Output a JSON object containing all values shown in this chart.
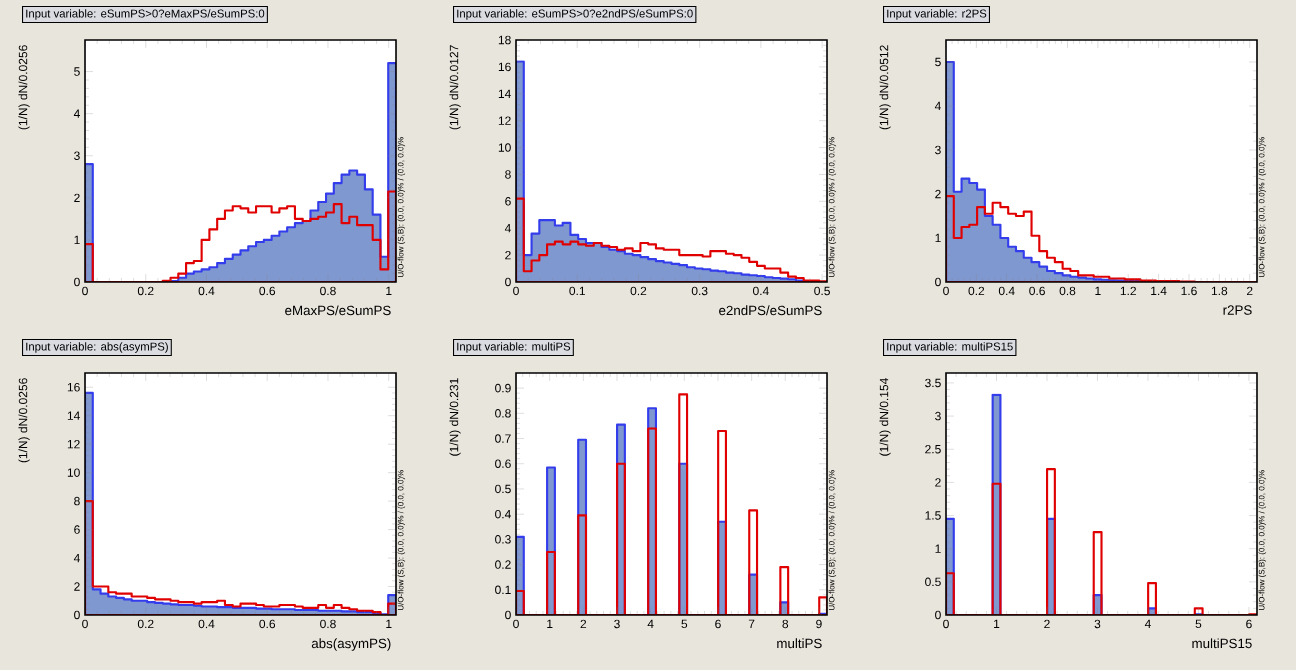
{
  "chart_data": [
    {
      "type": "histogram",
      "title": "Input variable: eSumPS>0?eMaxPS/eSumPS:0",
      "xlabel": "eMaxPS/eSumPS",
      "ylabel": "(1/N) dN/0.0256",
      "annotations": [
        "U/O-flow (S,B): (0.0, 0.0)% / (0.0, 0.0)%"
      ],
      "bins": [
        0,
        0.0256,
        0.0512,
        0.0768,
        0.1024,
        0.128,
        0.1536,
        0.1792,
        0.2048,
        0.2304,
        0.256,
        0.2816,
        0.3072,
        0.3328,
        0.3584,
        0.384,
        0.4096,
        0.4352,
        0.4608,
        0.4864,
        0.512,
        0.5376,
        0.5632,
        0.5888,
        0.6144,
        0.64,
        0.6656,
        0.6912,
        0.7168,
        0.7424,
        0.768,
        0.7936,
        0.8192,
        0.8448,
        0.8704,
        0.896,
        0.9216,
        0.9472,
        0.9728,
        0.9984,
        1.024
      ],
      "series": [
        {
          "color": "#8098d0",
          "values": [
            2.8,
            0,
            0,
            0,
            0,
            0,
            0,
            0,
            0,
            0,
            0,
            0.02,
            0.1,
            0.2,
            0.25,
            0.3,
            0.35,
            0.45,
            0.55,
            0.65,
            0.75,
            0.85,
            0.95,
            1.0,
            1.1,
            1.2,
            1.3,
            1.4,
            1.45,
            1.7,
            1.9,
            2.1,
            2.35,
            2.55,
            2.65,
            2.55,
            2.2,
            1.6,
            0.6,
            5.2
          ]
        },
        {
          "color": "#e00000",
          "values": [
            0.9,
            0,
            0,
            0,
            0,
            0,
            0,
            0,
            0,
            0,
            0.03,
            0.1,
            0.2,
            0.45,
            0.5,
            1.0,
            1.25,
            1.5,
            1.7,
            1.8,
            1.75,
            1.65,
            1.8,
            1.8,
            1.65,
            1.75,
            1.8,
            1.5,
            1.45,
            1.5,
            1.55,
            1.65,
            1.85,
            1.4,
            1.55,
            1.35,
            1.35,
            1.0,
            0.3,
            2.15
          ]
        }
      ],
      "xlim": [
        0,
        1.024
      ],
      "ylim": [
        0,
        5.75
      ],
      "xticks": [
        0,
        0.2,
        0.4,
        0.6,
        0.8,
        1
      ],
      "yticks": [
        0,
        1,
        2,
        3,
        4,
        5
      ]
    },
    {
      "type": "histogram",
      "title": "Input variable: eSumPS>0?e2ndPS/eSumPS:0",
      "xlabel": "e2ndPS/eSumPS",
      "ylabel": "(1/N) dN/0.0127",
      "annotations": [
        "U/O-flow (S,B): (0.0, 0.0)% / (0.0, 0.0)%"
      ],
      "bins": [
        0,
        0.0127,
        0.0254,
        0.0381,
        0.0508,
        0.0635,
        0.0762,
        0.0889,
        0.1016,
        0.1143,
        0.127,
        0.1397,
        0.1524,
        0.1651,
        0.1778,
        0.1905,
        0.2032,
        0.2159,
        0.2286,
        0.2413,
        0.254,
        0.2667,
        0.2794,
        0.2921,
        0.3048,
        0.3175,
        0.3302,
        0.3429,
        0.3556,
        0.3683,
        0.381,
        0.3937,
        0.4064,
        0.4191,
        0.4318,
        0.4445,
        0.4572,
        0.4699,
        0.4826,
        0.4953,
        0.508
      ],
      "series": [
        {
          "color": "#8098d0",
          "values": [
            16.4,
            2.0,
            3.6,
            4.6,
            4.6,
            4.2,
            4.4,
            3.5,
            3.2,
            2.9,
            2.9,
            2.6,
            2.4,
            2.3,
            2.1,
            2.0,
            1.85,
            1.7,
            1.55,
            1.45,
            1.35,
            1.25,
            1.1,
            1.0,
            0.95,
            0.85,
            0.8,
            0.7,
            0.65,
            0.55,
            0.5,
            0.45,
            0.35,
            0.3,
            0.25,
            0.2,
            0.1,
            0.05,
            0.02,
            0
          ]
        },
        {
          "color": "#e00000",
          "values": [
            6.2,
            0.8,
            1.6,
            2.0,
            2.8,
            3.0,
            2.8,
            3.0,
            2.8,
            2.7,
            2.9,
            2.7,
            2.6,
            2.4,
            2.5,
            2.3,
            2.9,
            2.8,
            2.5,
            2.4,
            2.4,
            2.0,
            2.0,
            2.0,
            1.9,
            2.3,
            2.3,
            2.1,
            2.0,
            1.8,
            1.5,
            1.2,
            1.0,
            1.0,
            0.7,
            0.4,
            0.3,
            0.1,
            0.1,
            0.05
          ]
        }
      ],
      "xlim": [
        0,
        0.508
      ],
      "ylim": [
        0,
        18
      ],
      "xticks": [
        0,
        0.1,
        0.2,
        0.3,
        0.4,
        0.5
      ],
      "yticks": [
        0,
        2,
        4,
        6,
        8,
        10,
        12,
        14,
        16,
        18
      ]
    },
    {
      "type": "histogram",
      "title": "Input variable: r2PS",
      "xlabel": "r2PS",
      "ylabel": "(1/N) dN/0.0512",
      "annotations": [
        "U/O-flow (S,B): (0.0, 0.0)% / (0.0, 0.0)%"
      ],
      "bins": [
        0,
        0.0512,
        0.1024,
        0.1536,
        0.2048,
        0.256,
        0.3072,
        0.3584,
        0.4096,
        0.4608,
        0.512,
        0.5632,
        0.6144,
        0.6656,
        0.7168,
        0.768,
        0.8192,
        0.8704,
        0.9216,
        0.9728,
        1.024,
        1.0752,
        1.1264,
        1.1776,
        1.2288,
        1.28,
        1.3312,
        1.3824,
        1.4336,
        1.4848,
        1.536,
        1.5872,
        1.6384,
        1.6896,
        1.7408,
        1.792,
        1.8432,
        1.8944,
        1.9456,
        1.9968,
        2.048
      ],
      "series": [
        {
          "color": "#8098d0",
          "values": [
            5.0,
            2.05,
            2.35,
            2.25,
            2.1,
            1.5,
            1.3,
            1.0,
            0.8,
            0.7,
            0.55,
            0.45,
            0.35,
            0.25,
            0.2,
            0.15,
            0.12,
            0.1,
            0.08,
            0.06,
            0.05,
            0.04,
            0.03,
            0.02,
            0.02,
            0.01,
            0.01,
            0,
            0,
            0,
            0,
            0,
            0,
            0,
            0,
            0,
            0,
            0,
            0,
            0
          ]
        },
        {
          "color": "#e00000",
          "values": [
            1.95,
            1.0,
            1.25,
            1.3,
            1.7,
            1.55,
            1.8,
            1.7,
            1.55,
            1.5,
            1.6,
            1.05,
            0.7,
            0.55,
            0.45,
            0.3,
            0.25,
            0.15,
            0.15,
            0.12,
            0.12,
            0.08,
            0.08,
            0.06,
            0.06,
            0.03,
            0.03,
            0.02,
            0.02,
            0.02,
            0.01,
            0.01,
            0,
            0,
            0,
            0,
            0,
            0,
            0,
            0
          ]
        }
      ],
      "xlim": [
        0,
        2.048
      ],
      "ylim": [
        0,
        5.5
      ],
      "xticks": [
        0,
        0.2,
        0.4,
        0.6,
        0.8,
        1,
        1.2,
        1.4,
        1.6,
        1.8,
        2
      ],
      "yticks": [
        0,
        1,
        2,
        3,
        4,
        5
      ]
    },
    {
      "type": "histogram",
      "title": "Input variable: abs(asymPS)",
      "xlabel": "abs(asymPS)",
      "ylabel": "(1/N) dN/0.0256",
      "annotations": [
        "U/O-flow (S,B): (0.0, 0.0)% / (0.0, 0.0)%"
      ],
      "bins": [
        0,
        0.0256,
        0.0512,
        0.0768,
        0.1024,
        0.128,
        0.1536,
        0.1792,
        0.2048,
        0.2304,
        0.256,
        0.2816,
        0.3072,
        0.3328,
        0.3584,
        0.384,
        0.4096,
        0.4352,
        0.4608,
        0.4864,
        0.512,
        0.5376,
        0.5632,
        0.5888,
        0.6144,
        0.64,
        0.6656,
        0.6912,
        0.7168,
        0.7424,
        0.768,
        0.7936,
        0.8192,
        0.8448,
        0.8704,
        0.896,
        0.9216,
        0.9472,
        0.9728,
        0.9984,
        1.024
      ],
      "series": [
        {
          "color": "#8098d0",
          "values": [
            15.6,
            1.8,
            1.5,
            1.3,
            1.2,
            1.1,
            1.0,
            1.0,
            0.9,
            0.85,
            0.8,
            0.75,
            0.7,
            0.7,
            0.65,
            0.6,
            0.6,
            0.55,
            0.55,
            0.5,
            0.5,
            0.5,
            0.45,
            0.45,
            0.4,
            0.4,
            0.4,
            0.35,
            0.35,
            0.35,
            0.3,
            0.3,
            0.3,
            0.25,
            0.25,
            0.2,
            0.2,
            0.15,
            0.05,
            1.4
          ]
        },
        {
          "color": "#e00000",
          "values": [
            8.0,
            2.0,
            2.0,
            1.6,
            1.5,
            1.5,
            1.3,
            1.3,
            1.2,
            1.1,
            1.1,
            1.0,
            0.9,
            0.9,
            0.8,
            0.9,
            0.9,
            1.0,
            0.7,
            0.6,
            0.8,
            0.8,
            0.7,
            0.6,
            0.6,
            0.7,
            0.7,
            0.6,
            0.5,
            0.5,
            0.7,
            0.5,
            0.7,
            0.5,
            0.4,
            0.3,
            0.3,
            0.2,
            0,
            0.8
          ]
        }
      ],
      "xlim": [
        0,
        1.024
      ],
      "ylim": [
        0,
        17
      ],
      "xticks": [
        0,
        0.2,
        0.4,
        0.6,
        0.8,
        1
      ],
      "yticks": [
        0,
        2,
        4,
        6,
        8,
        10,
        12,
        14,
        16
      ]
    },
    {
      "type": "histogram",
      "title": "Input variable: multiPS",
      "xlabel": "multiPS",
      "ylabel": "(1/N) dN/0.231",
      "annotations": [
        "U/O-flow (S,B): (0.0, 0.0)% / (0.0, 0.0)%"
      ],
      "bins": [
        0,
        0.231,
        0.462,
        0.693,
        0.924,
        1.155,
        1.386,
        1.617,
        1.848,
        2.079,
        2.31,
        2.541,
        2.772,
        3.003,
        3.234,
        3.465,
        3.696,
        3.927,
        4.158,
        4.389,
        4.62,
        4.851,
        5.082,
        5.313,
        5.544,
        5.775,
        6.006,
        6.237,
        6.468,
        6.699,
        6.93,
        7.161,
        7.392,
        7.623,
        7.854,
        8.085,
        8.316,
        8.547,
        8.778,
        9.009,
        9.24
      ],
      "series": [
        {
          "color": "#8098d0",
          "values": [
            0.31,
            0,
            0,
            0,
            0.585,
            0,
            0,
            0,
            0.695,
            0,
            0,
            0,
            0,
            0.755,
            0,
            0,
            0,
            0.82,
            0,
            0,
            0,
            0.6,
            0,
            0,
            0,
            0,
            0.37,
            0,
            0,
            0,
            0.16,
            0,
            0,
            0,
            0.05,
            0,
            0,
            0,
            0,
            0.005
          ]
        },
        {
          "color": "#e00000",
          "values": [
            0.095,
            0,
            0,
            0,
            0.25,
            0,
            0,
            0,
            0.395,
            0,
            0,
            0,
            0,
            0.6,
            0,
            0,
            0,
            0.74,
            0,
            0,
            0,
            0.875,
            0,
            0,
            0,
            0,
            0.73,
            0,
            0,
            0,
            0.415,
            0,
            0,
            0,
            0.19,
            0,
            0,
            0,
            0,
            0.07
          ]
        }
      ],
      "xlim": [
        0,
        9.24
      ],
      "ylim": [
        0,
        0.96
      ],
      "xticks": [
        0,
        1,
        2,
        3,
        4,
        5,
        6,
        7,
        8,
        9
      ],
      "yticks": [
        0,
        0.1,
        0.2,
        0.3,
        0.4,
        0.5,
        0.6,
        0.7,
        0.8,
        0.9
      ]
    },
    {
      "type": "histogram",
      "title": "Input variable: multiPS15",
      "xlabel": "multiPS15",
      "ylabel": "(1/N) dN/0.154",
      "annotations": [
        "U/O-flow (S,B): (0.0, 0.0)% / (0.0, 0.0)%"
      ],
      "bins": [
        0,
        0.154,
        0.308,
        0.462,
        0.616,
        0.77,
        0.924,
        1.078,
        1.232,
        1.386,
        1.54,
        1.694,
        1.848,
        2.002,
        2.156,
        2.31,
        2.464,
        2.618,
        2.772,
        2.926,
        3.08,
        3.234,
        3.388,
        3.542,
        3.696,
        3.85,
        4.004,
        4.158,
        4.312,
        4.466,
        4.62,
        4.774,
        4.928,
        5.082,
        5.236,
        5.39,
        5.544,
        5.698,
        5.852,
        6.006,
        6.16
      ],
      "series": [
        {
          "color": "#8098d0",
          "values": [
            1.45,
            0,
            0,
            0,
            0,
            0,
            3.32,
            0,
            0,
            0,
            0,
            0,
            0,
            1.45,
            0,
            0,
            0,
            0,
            0,
            0.3,
            0,
            0,
            0,
            0,
            0,
            0,
            0.1,
            0,
            0,
            0,
            0,
            0,
            0.01,
            0,
            0,
            0,
            0,
            0,
            0,
            0
          ]
        },
        {
          "color": "#e00000",
          "values": [
            0.63,
            0,
            0,
            0,
            0,
            0,
            1.98,
            0,
            0,
            0,
            0,
            0,
            0,
            2.2,
            0,
            0,
            0,
            0,
            0,
            1.25,
            0,
            0,
            0,
            0,
            0,
            0,
            0.48,
            0,
            0,
            0,
            0,
            0,
            0.1,
            0,
            0,
            0,
            0,
            0,
            0,
            0.01
          ]
        }
      ],
      "xlim": [
        0,
        6.16
      ],
      "ylim": [
        0,
        3.65
      ],
      "xticks": [
        0,
        1,
        2,
        3,
        4,
        5,
        6
      ],
      "yticks": [
        0,
        0.5,
        1,
        1.5,
        2,
        2.5,
        3,
        3.5
      ]
    }
  ]
}
